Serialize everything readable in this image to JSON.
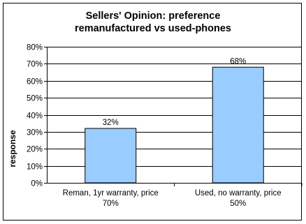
{
  "chart_data": {
    "type": "bar",
    "title_lines": [
      "Sellers' Opinion: preference",
      "remanufactured vs used-phones"
    ],
    "ylabel": "response",
    "xlabel": "",
    "categories": [
      [
        "Reman, 1yr warranty, price",
        "70%"
      ],
      [
        "Used, no warranty, price",
        "50%"
      ]
    ],
    "values": [
      0.32,
      0.68
    ],
    "data_labels": [
      "32%",
      "68%"
    ],
    "ylim": [
      0,
      0.8
    ],
    "yticks": [
      0,
      0.1,
      0.2,
      0.3,
      0.4,
      0.5,
      0.6,
      0.7,
      0.8
    ],
    "ytick_labels": [
      "0%",
      "10%",
      "20%",
      "30%",
      "40%",
      "50%",
      "60%",
      "70%",
      "80%"
    ],
    "grid": true,
    "legend": "none",
    "bar_color": "#99ccff",
    "bar_edge_color": "#000000"
  }
}
